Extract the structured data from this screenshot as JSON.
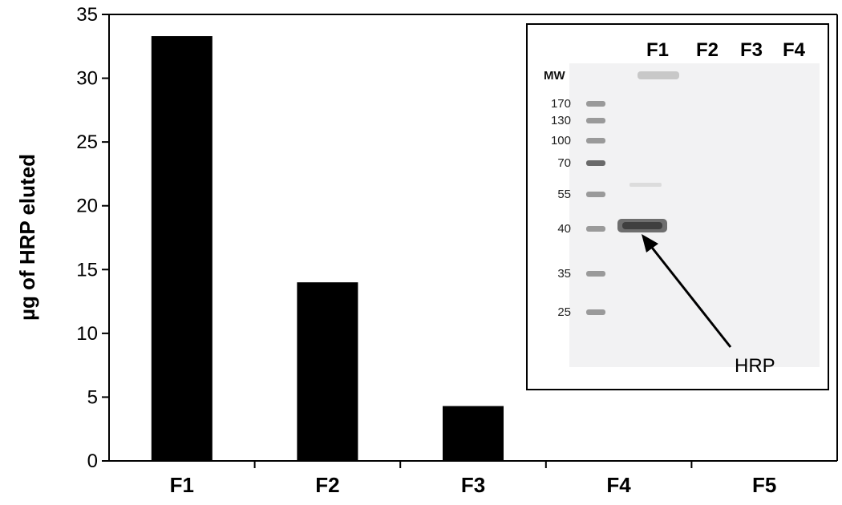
{
  "chart_data": {
    "type": "bar",
    "categories": [
      "F1",
      "F2",
      "F3",
      "F4",
      "F5"
    ],
    "values": [
      33.3,
      14.0,
      4.3,
      0,
      0
    ],
    "title": "",
    "xlabel": "",
    "ylabel": "µg of HRP eluted",
    "ylim": [
      0,
      35
    ],
    "yticks": [
      0,
      5,
      10,
      15,
      20,
      25,
      30,
      35
    ],
    "bar_color": "#000000",
    "grid": false
  },
  "inset": {
    "lanes": [
      "F1",
      "F2",
      "F3",
      "F4"
    ],
    "mw_header": "MW",
    "mw_markers": [
      "170",
      "130",
      "100",
      "70",
      "55",
      "40",
      "35",
      "25"
    ],
    "annotation": "HRP"
  }
}
